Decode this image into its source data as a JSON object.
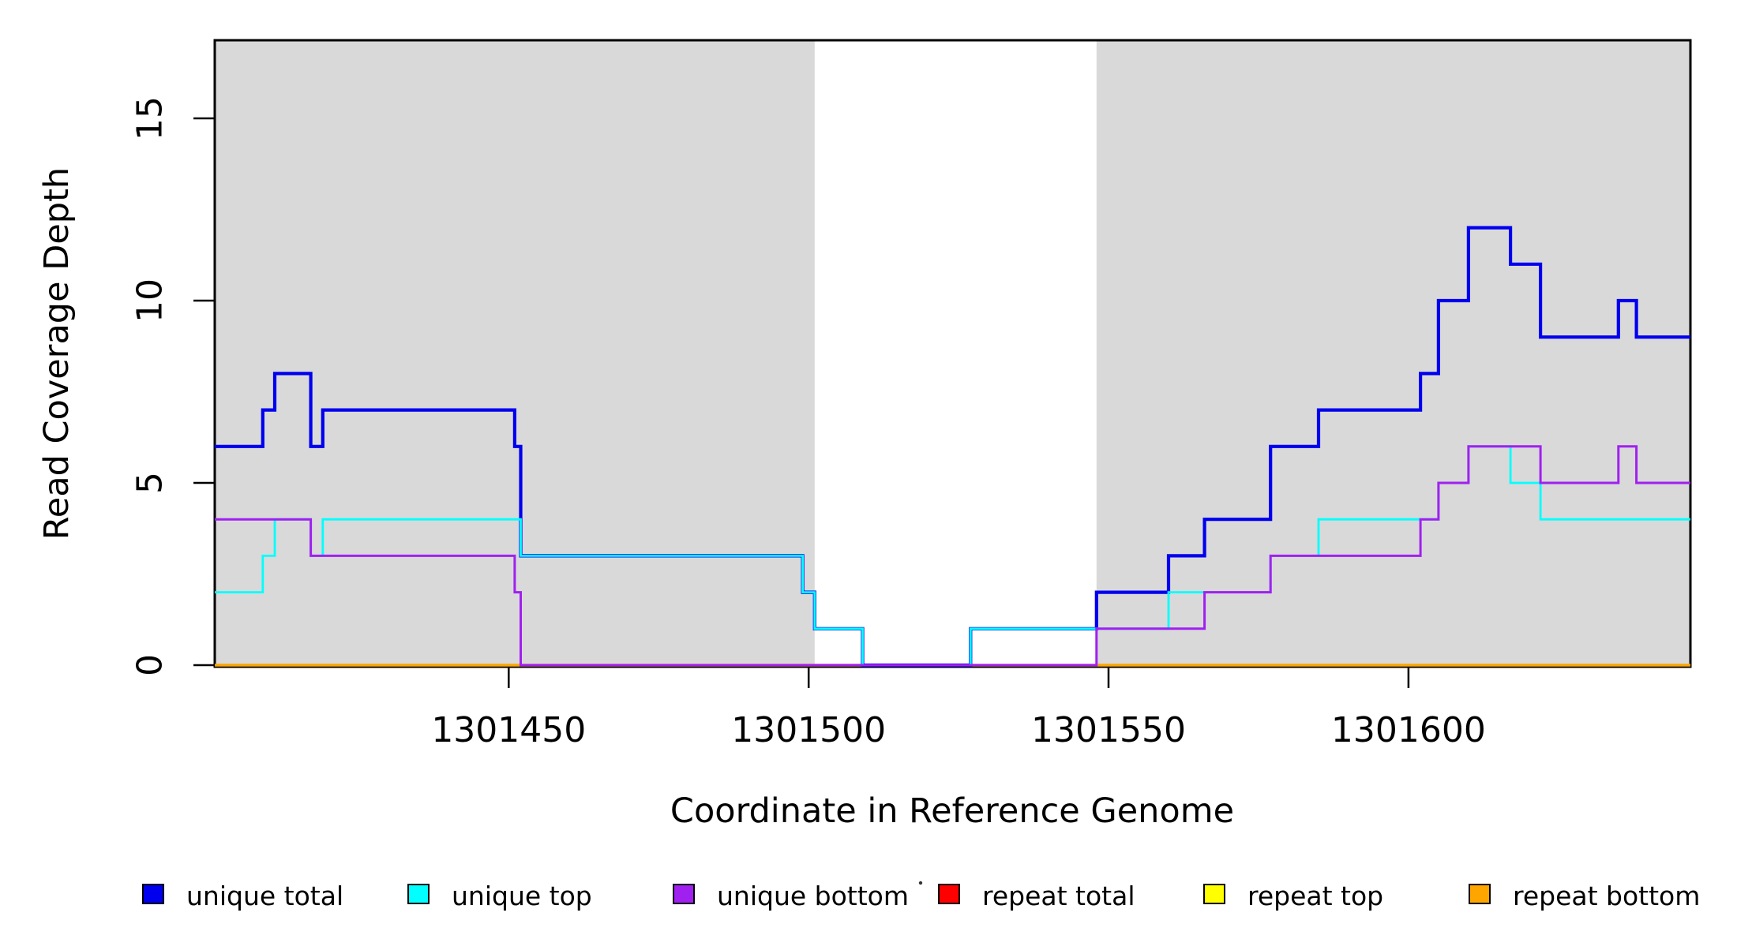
{
  "chart_data": {
    "type": "line",
    "step": "post",
    "title": "",
    "xlabel": "Coordinate in Reference Genome",
    "ylabel": "Read Coverage Depth",
    "xlim": [
      1301401,
      1301647
    ],
    "ylim": [
      0,
      17.15
    ],
    "grid": false,
    "x_ticks": [
      {
        "value": 1301450,
        "label": "1301450"
      },
      {
        "value": 1301500,
        "label": "1301500"
      },
      {
        "value": 1301550,
        "label": "1301550"
      },
      {
        "value": 1301600,
        "label": "1301600"
      }
    ],
    "y_ticks": [
      {
        "value": 0,
        "label": "0"
      },
      {
        "value": 5,
        "label": "5"
      },
      {
        "value": 10,
        "label": "10"
      },
      {
        "value": 15,
        "label": "15"
      }
    ],
    "shaded_regions": [
      {
        "x0": 1301401,
        "x1": 1301501,
        "color": "#D9D9D9"
      },
      {
        "x0": 1301548,
        "x1": 1301647,
        "color": "#D9D9D9"
      }
    ],
    "series": [
      {
        "name": "repeat total",
        "color": "#FF0000",
        "width": 3,
        "steps": [
          [
            1301401,
            0
          ]
        ]
      },
      {
        "name": "repeat top",
        "color": "#FFFF00",
        "width": 3,
        "steps": [
          [
            1301401,
            0
          ]
        ]
      },
      {
        "name": "repeat bottom",
        "color": "#FFA500",
        "width": 3.5,
        "steps": [
          [
            1301401,
            0
          ]
        ]
      },
      {
        "name": "unique total",
        "color": "#0000EE",
        "width": 4.2,
        "steps": [
          [
            1301401,
            6
          ],
          [
            1301409,
            7
          ],
          [
            1301411,
            8
          ],
          [
            1301417,
            6
          ],
          [
            1301419,
            7
          ],
          [
            1301451,
            6
          ],
          [
            1301452,
            3
          ],
          [
            1301499,
            2
          ],
          [
            1301501,
            1
          ],
          [
            1301509,
            0
          ],
          [
            1301527,
            1
          ],
          [
            1301548,
            2
          ],
          [
            1301560,
            3
          ],
          [
            1301566,
            4
          ],
          [
            1301577,
            6
          ],
          [
            1301585,
            7
          ],
          [
            1301602,
            8
          ],
          [
            1301605,
            10
          ],
          [
            1301610,
            12
          ],
          [
            1301617,
            11
          ],
          [
            1301622,
            9
          ],
          [
            1301635,
            10
          ],
          [
            1301638,
            9
          ]
        ]
      },
      {
        "name": "unique top",
        "color": "#00FFFF",
        "width": 2.8,
        "steps": [
          [
            1301401,
            2
          ],
          [
            1301409,
            3
          ],
          [
            1301411,
            4
          ],
          [
            1301417,
            3
          ],
          [
            1301419,
            4
          ],
          [
            1301452,
            3
          ],
          [
            1301499,
            2
          ],
          [
            1301501,
            1
          ],
          [
            1301509,
            0
          ],
          [
            1301527,
            1
          ],
          [
            1301560,
            2
          ],
          [
            1301577,
            3
          ],
          [
            1301585,
            4
          ],
          [
            1301605,
            5
          ],
          [
            1301610,
            6
          ],
          [
            1301617,
            5
          ],
          [
            1301622,
            4
          ]
        ]
      },
      {
        "name": "unique bottom",
        "color": "#A020F0",
        "width": 3,
        "steps": [
          [
            1301401,
            4
          ],
          [
            1301417,
            3
          ],
          [
            1301451,
            2
          ],
          [
            1301452,
            0
          ],
          [
            1301548,
            1
          ],
          [
            1301566,
            2
          ],
          [
            1301577,
            3
          ],
          [
            1301602,
            4
          ],
          [
            1301605,
            5
          ],
          [
            1301610,
            6
          ],
          [
            1301622,
            5
          ],
          [
            1301635,
            6
          ],
          [
            1301638,
            5
          ]
        ]
      }
    ],
    "legend": {
      "position": "bottom",
      "entries": [
        {
          "label": "unique total",
          "color": "#0000EE"
        },
        {
          "label": "unique top",
          "color": "#00FFFF"
        },
        {
          "label": "unique bottom",
          "color": "#A020F0"
        },
        {
          "label": "repeat total",
          "color": "#FF0000"
        },
        {
          "label": "repeat top",
          "color": "#FFFF00"
        },
        {
          "label": "repeat bottom",
          "color": "#FFA500"
        }
      ]
    }
  }
}
